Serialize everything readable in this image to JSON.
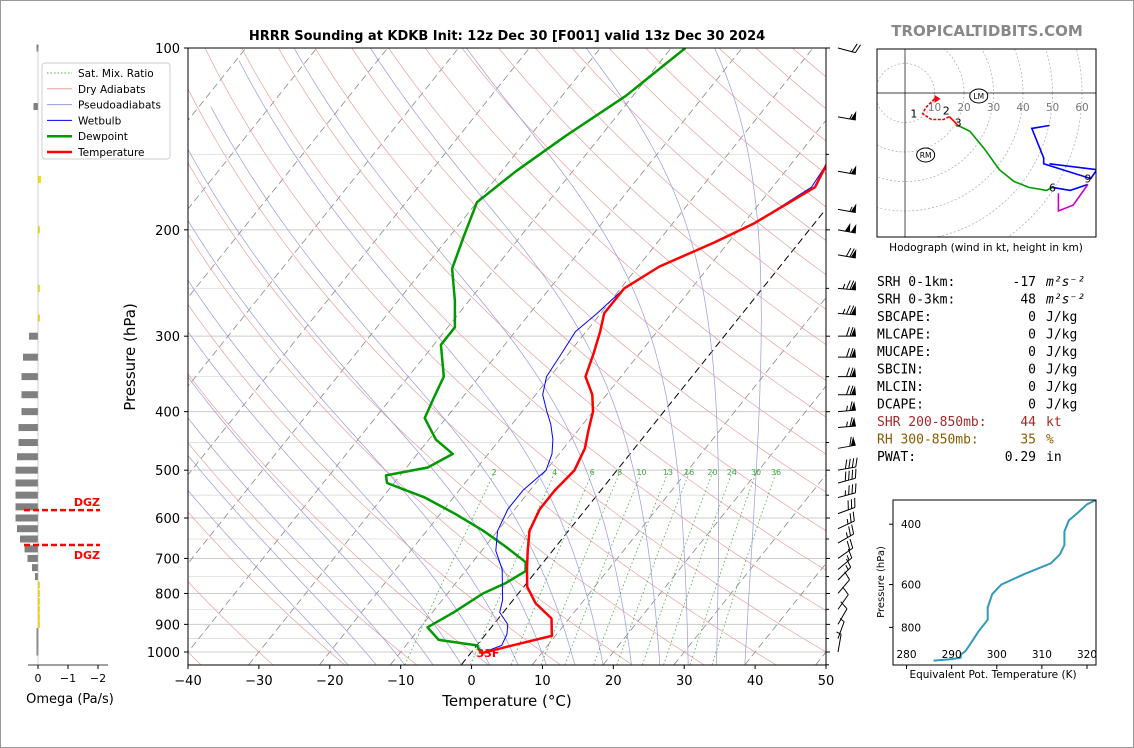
{
  "title": "HRRR Sounding at KDKB Init: 12z Dec 30 [F001] valid 13z Dec 30 2024",
  "watermark": "TROPICALTIDBITS.COM",
  "chart_data": [
    {
      "type": "line",
      "name": "skew-t",
      "title": "HRRR Sounding at KDKB Init: 12z Dec 30 [F001] valid 13z Dec 30 2024",
      "xlabel": "Temperature (°C)",
      "ylabel": "Pressure (hPa)",
      "xlim": [
        -40,
        50
      ],
      "ylim": [
        1050,
        100
      ],
      "x_ticks": [
        "−40",
        "−30",
        "−20",
        "−10",
        "0",
        "10",
        "20",
        "30",
        "40",
        "50"
      ],
      "y_ticks": [
        "100",
        "200",
        "300",
        "400",
        "500",
        "600",
        "700",
        "800",
        "900",
        "1000"
      ],
      "legend": [
        "Sat. Mix. Ratio",
        "Dry Adiabats",
        "Pseudoadiabats",
        "Wetbulb",
        "Dewpoint",
        "Temperature"
      ],
      "legend_position": "top-left",
      "mixing_ratio_labels": [
        "2",
        "4",
        "6",
        "8",
        "10",
        "13",
        "16",
        "20",
        "24",
        "30",
        "36"
      ],
      "surface_label": "33F",
      "series": [
        {
          "name": "Temperature",
          "color": "#ff0000",
          "points": [
            [
              1.5,
              1005
            ],
            [
              5,
              975
            ],
            [
              9.5,
              940
            ],
            [
              7.5,
              880
            ],
            [
              3.5,
              830
            ],
            [
              0.5,
              780
            ],
            [
              -1.5,
              730
            ],
            [
              -3.5,
              680
            ],
            [
              -5.5,
              630
            ],
            [
              -6.5,
              580
            ],
            [
              -6.5,
              540
            ],
            [
              -6,
              500
            ],
            [
              -7,
              460
            ],
            [
              -8.5,
              430
            ],
            [
              -10,
              400
            ],
            [
              -12,
              375
            ],
            [
              -15,
              350
            ],
            [
              -16.5,
              320
            ],
            [
              -18,
              295
            ],
            [
              -19.5,
              275
            ],
            [
              -19.5,
              250
            ],
            [
              -17,
              230
            ],
            [
              -12,
              210
            ],
            [
              -8.5,
              195
            ],
            [
              -4,
              170
            ],
            [
              -5,
              155
            ],
            [
              -3.5,
              140
            ],
            [
              -1.5,
              125
            ],
            [
              0.5,
              115
            ],
            [
              2,
              100
            ]
          ]
        },
        {
          "name": "Wetbulb",
          "color": "#0000ff",
          "points": [
            [
              1.5,
              1005
            ],
            [
              3.5,
              975
            ],
            [
              3,
              935
            ],
            [
              2,
              900
            ],
            [
              -0.5,
              860
            ],
            [
              -1.5,
              820
            ],
            [
              -3,
              780
            ],
            [
              -5,
              730
            ],
            [
              -8,
              680
            ],
            [
              -10,
              630
            ],
            [
              -11,
              580
            ],
            [
              -11,
              540
            ],
            [
              -10,
              500
            ],
            [
              -11,
              470
            ],
            [
              -12.5,
              445
            ],
            [
              -14.5,
              420
            ],
            [
              -16.5,
              400
            ],
            [
              -19,
              375
            ],
            [
              -20.5,
              350
            ],
            [
              -21,
              320
            ],
            [
              -21.5,
              295
            ],
            [
              -20.5,
              275
            ],
            [
              -19.5,
              250
            ],
            [
              -17,
              230
            ],
            [
              -12,
              210
            ],
            [
              -8.5,
              195
            ],
            [
              -4.5,
              170
            ],
            [
              -5,
              155
            ],
            [
              -3.5,
              140
            ],
            [
              -1,
              125
            ],
            [
              1,
              115
            ],
            [
              3,
              100
            ]
          ]
        },
        {
          "name": "Dewpoint",
          "color": "#009900",
          "points": [
            [
              1.5,
              1005
            ],
            [
              0,
              975
            ],
            [
              -6,
              955
            ],
            [
              -9,
              910
            ],
            [
              -7,
              860
            ],
            [
              -6,
              830
            ],
            [
              -5,
              800
            ],
            [
              -3,
              770
            ],
            [
              -1.5,
              735
            ],
            [
              -2.5,
              710
            ],
            [
              -7,
              670
            ],
            [
              -12,
              630
            ],
            [
              -18,
              590
            ],
            [
              -24,
              555
            ],
            [
              -31,
              525
            ],
            [
              -32,
              510
            ],
            [
              -27,
              495
            ],
            [
              -25,
              470
            ],
            [
              -29,
              445
            ],
            [
              -33,
              410
            ],
            [
              -34,
              380
            ],
            [
              -35,
              350
            ],
            [
              -39,
              310
            ],
            [
              -39,
              290
            ],
            [
              -42,
              262
            ],
            [
              -46,
              232
            ],
            [
              -48,
              205
            ],
            [
              -50,
              180
            ],
            [
              -48,
              160
            ],
            [
              -45,
              140
            ],
            [
              -41,
              120
            ],
            [
              -38,
              100
            ]
          ]
        }
      ]
    },
    {
      "type": "bar",
      "name": "omega",
      "xlabel": "Omega (Pa/s)",
      "x_ticks": [
        "0",
        "−1",
        "−2"
      ],
      "xlim": [
        0,
        -2
      ],
      "dgz_label": "DGZ",
      "dgz_pressures": [
        580,
        665
      ],
      "bars": [
        {
          "p": 100,
          "v": 0.05
        },
        {
          "p": 125,
          "v": 0.15
        },
        {
          "p": 165,
          "v": -0.1
        },
        {
          "p": 200,
          "v": -0.05
        },
        {
          "p": 250,
          "v": -0.05
        },
        {
          "p": 280,
          "v": -0.05
        },
        {
          "p": 300,
          "v": 0.3
        },
        {
          "p": 325,
          "v": 0.5
        },
        {
          "p": 350,
          "v": 0.55
        },
        {
          "p": 375,
          "v": 0.55
        },
        {
          "p": 400,
          "v": 0.55
        },
        {
          "p": 425,
          "v": 0.65
        },
        {
          "p": 450,
          "v": 0.65
        },
        {
          "p": 475,
          "v": 0.7
        },
        {
          "p": 500,
          "v": 0.75
        },
        {
          "p": 525,
          "v": 0.75
        },
        {
          "p": 550,
          "v": 0.75
        },
        {
          "p": 575,
          "v": 0.75
        },
        {
          "p": 600,
          "v": 0.75
        },
        {
          "p": 625,
          "v": 0.7
        },
        {
          "p": 650,
          "v": 0.6
        },
        {
          "p": 675,
          "v": 0.45
        },
        {
          "p": 700,
          "v": 0.35
        },
        {
          "p": 725,
          "v": 0.2
        },
        {
          "p": 750,
          "v": 0.1
        },
        {
          "p": 775,
          "v": -0.05
        },
        {
          "p": 800,
          "v": -0.05
        },
        {
          "p": 825,
          "v": -0.05
        },
        {
          "p": 850,
          "v": -0.05
        },
        {
          "p": 875,
          "v": -0.05
        },
        {
          "p": 900,
          "v": -0.05
        },
        {
          "p": 925,
          "v": 0.05
        },
        {
          "p": 950,
          "v": 0.05
        },
        {
          "p": 975,
          "v": 0.05
        },
        {
          "p": 1000,
          "v": 0.05
        }
      ]
    },
    {
      "type": "line",
      "name": "hodograph",
      "xlabel": "Hodograph (wind in kt, height in km)",
      "ring_labels": [
        "10",
        "20",
        "30",
        "40",
        "50",
        "60"
      ],
      "height_labels": [
        {
          "t": "1",
          "u": 3,
          "v": -7
        },
        {
          "t": "2",
          "u": 14,
          "v": -6
        },
        {
          "t": "3",
          "u": 18,
          "v": -10
        },
        {
          "t": "6",
          "u": 50,
          "v": -32
        },
        {
          "t": "9",
          "u": 62,
          "v": -29
        }
      ],
      "markers": [
        {
          "t": "LM",
          "u": 25,
          "v": -1
        },
        {
          "t": "RM",
          "u": 7,
          "v": -21
        }
      ],
      "series": [
        {
          "name": "0-1 km",
          "color": "#ff0000",
          "points": [
            [
              10,
              -2
            ],
            [
              7,
              -5
            ],
            [
              6,
              -7
            ],
            [
              9,
              -9
            ],
            [
              13,
              -9
            ],
            [
              15,
              -8
            ]
          ]
        },
        {
          "name": "1-3 km",
          "color": "#ff0000",
          "points": [
            [
              15,
              -8
            ],
            [
              16,
              -9
            ],
            [
              18,
              -11
            ]
          ]
        },
        {
          "name": "3-6 km",
          "color": "#009900",
          "points": [
            [
              18,
              -11
            ],
            [
              22,
              -13
            ],
            [
              27,
              -19
            ],
            [
              32,
              -26
            ],
            [
              37,
              -30
            ],
            [
              42,
              -32
            ],
            [
              48,
              -33
            ],
            [
              50,
              -32
            ]
          ]
        },
        {
          "name": "6-9 km",
          "color": "#0000ff",
          "points": [
            [
              50,
              -32
            ],
            [
              56,
              -33
            ],
            [
              62,
              -31
            ]
          ]
        },
        {
          "name": "9 km+",
          "color": "#0000ff",
          "points": [
            [
              49,
              -24
            ],
            [
              65,
              -26
            ],
            [
              63,
              -29
            ],
            [
              47,
              -24
            ],
            [
              47,
              -22
            ],
            [
              43,
              -12
            ],
            [
              49,
              -11
            ]
          ]
        },
        {
          "name": "upper",
          "color": "#cc00cc",
          "points": [
            [
              62,
              -31
            ],
            [
              57,
              -38
            ],
            [
              52,
              -40
            ],
            [
              52,
              -34
            ]
          ]
        }
      ]
    },
    {
      "type": "line",
      "name": "theta-e",
      "xlabel": "Equivalent Pot. Temperature (K)",
      "ylabel": "Pressure (hPa)",
      "xlim": [
        277,
        322
      ],
      "ylim": [
        1030,
        340
      ],
      "x_ticks": [
        "280",
        "290",
        "300",
        "310",
        "320"
      ],
      "y_ticks": [
        "400",
        "600",
        "800"
      ],
      "series": [
        {
          "name": "Theta-E",
          "color": "#3399bb",
          "points": [
            [
              286,
              1000
            ],
            [
              290,
              990
            ],
            [
              292,
              980
            ],
            [
              292,
              960
            ],
            [
              293,
              940
            ],
            [
              294,
              900
            ],
            [
              295,
              860
            ],
            [
              296,
              820
            ],
            [
              297,
              790
            ],
            [
              298,
              760
            ],
            [
              298,
              700
            ],
            [
              299,
              640
            ],
            [
              301,
              600
            ],
            [
              306,
              560
            ],
            [
              312,
              520
            ],
            [
              314,
              490
            ],
            [
              315,
              460
            ],
            [
              315,
              420
            ],
            [
              316,
              390
            ],
            [
              318,
              370
            ],
            [
              320,
              350
            ],
            [
              322,
              340
            ]
          ]
        }
      ]
    }
  ],
  "indices": [
    {
      "label": "SRH 0-1km:",
      "value": "-17",
      "unit": "m²s⁻²",
      "color": "#000000"
    },
    {
      "label": "SRH 0-3km:",
      "value": "48",
      "unit": "m²s⁻²",
      "color": "#000000"
    },
    {
      "label": "SBCAPE:",
      "value": "0",
      "unit": "J/kg",
      "color": "#000000"
    },
    {
      "label": "MLCAPE:",
      "value": "0",
      "unit": "J/kg",
      "color": "#000000"
    },
    {
      "label": "MUCAPE:",
      "value": "0",
      "unit": "J/kg",
      "color": "#000000"
    },
    {
      "label": "SBCIN:",
      "value": "0",
      "unit": "J/kg",
      "color": "#000000"
    },
    {
      "label": "MLCIN:",
      "value": "0",
      "unit": "J/kg",
      "color": "#000000"
    },
    {
      "label": "DCAPE:",
      "value": "0",
      "unit": "J/kg",
      "color": "#000000"
    },
    {
      "label": "SHR 200-850mb:",
      "value": "44",
      "unit": "kt",
      "color": "#a52a2a"
    },
    {
      "label": "RH 300-850mb:",
      "value": "35",
      "unit": "%",
      "color": "#8b5a00"
    },
    {
      "label": "PWAT:",
      "value": "0.29",
      "unit": "in",
      "color": "#000000"
    }
  ],
  "wind_barbs": [
    {
      "p": 100,
      "dir": 285,
      "spd": 20
    },
    {
      "p": 130,
      "dir": 280,
      "spd": 55
    },
    {
      "p": 160,
      "dir": 280,
      "spd": 55
    },
    {
      "p": 185,
      "dir": 280,
      "spd": 55
    },
    {
      "p": 200,
      "dir": 280,
      "spd": 100
    },
    {
      "p": 220,
      "dir": 280,
      "spd": 70
    },
    {
      "p": 250,
      "dir": 275,
      "spd": 75
    },
    {
      "p": 275,
      "dir": 275,
      "spd": 75
    },
    {
      "p": 300,
      "dir": 270,
      "spd": 70
    },
    {
      "p": 325,
      "dir": 270,
      "spd": 70
    },
    {
      "p": 350,
      "dir": 270,
      "spd": 70
    },
    {
      "p": 375,
      "dir": 270,
      "spd": 70
    },
    {
      "p": 400,
      "dir": 265,
      "spd": 65
    },
    {
      "p": 425,
      "dir": 265,
      "spd": 65
    },
    {
      "p": 460,
      "dir": 260,
      "spd": 60
    },
    {
      "p": 500,
      "dir": 260,
      "spd": 40
    },
    {
      "p": 525,
      "dir": 255,
      "spd": 40
    },
    {
      "p": 555,
      "dir": 255,
      "spd": 35
    },
    {
      "p": 590,
      "dir": 250,
      "spd": 30
    },
    {
      "p": 625,
      "dir": 245,
      "spd": 25
    },
    {
      "p": 660,
      "dir": 240,
      "spd": 25
    },
    {
      "p": 700,
      "dir": 235,
      "spd": 20
    },
    {
      "p": 730,
      "dir": 230,
      "spd": 15
    },
    {
      "p": 760,
      "dir": 225,
      "spd": 15
    },
    {
      "p": 800,
      "dir": 220,
      "spd": 10
    },
    {
      "p": 850,
      "dir": 215,
      "spd": 10
    },
    {
      "p": 900,
      "dir": 210,
      "spd": 10
    },
    {
      "p": 950,
      "dir": 200,
      "spd": 5
    },
    {
      "p": 1000,
      "dir": 190,
      "spd": 5
    }
  ],
  "colors": {
    "temperature": "#ff0000",
    "dewpoint": "#009900",
    "wetbulb": "#0000ff",
    "omega_bar": "#808080",
    "omega_yellow": "#f5e000",
    "dgz": "#ff0000"
  }
}
